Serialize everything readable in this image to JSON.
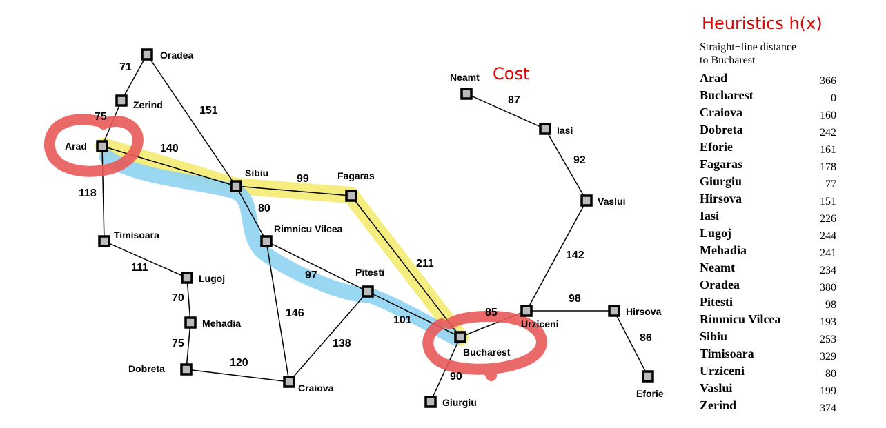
{
  "cost_label": "Cost",
  "heuristics": {
    "title": "Heuristics h(x)",
    "subtitle_line1": "Straight−line distance",
    "subtitle_line2": "to Bucharest",
    "rows": [
      {
        "city": "Arad",
        "value": "366"
      },
      {
        "city": "Bucharest",
        "value": "0"
      },
      {
        "city": "Craiova",
        "value": "160"
      },
      {
        "city": "Dobreta",
        "value": "242"
      },
      {
        "city": "Eforie",
        "value": "161"
      },
      {
        "city": "Fagaras",
        "value": "178"
      },
      {
        "city": "Giurgiu",
        "value": "77"
      },
      {
        "city": "Hirsova",
        "value": "151"
      },
      {
        "city": "Iasi",
        "value": "226"
      },
      {
        "city": "Lugoj",
        "value": "244"
      },
      {
        "city": "Mehadia",
        "value": "241"
      },
      {
        "city": "Neamt",
        "value": "234"
      },
      {
        "city": "Oradea",
        "value": "380"
      },
      {
        "city": "Pitesti",
        "value": "98"
      },
      {
        "city": "Rimnicu Vilcea",
        "value": "193"
      },
      {
        "city": "Sibiu",
        "value": "253"
      },
      {
        "city": "Timisoara",
        "value": "329"
      },
      {
        "city": "Urziceni",
        "value": "80"
      },
      {
        "city": "Vaslui",
        "value": "199"
      },
      {
        "city": "Zerind",
        "value": "374"
      }
    ]
  },
  "cities": {
    "oradea": "Oradea",
    "zerind": "Zerind",
    "arad": "Arad",
    "sibiu": "Sibiu",
    "fagaras": "Fagaras",
    "timisoara": "Timisoara",
    "rimnicu": "Rimnicu Vilcea",
    "lugoj": "Lugoj",
    "pitesti": "Pitesti",
    "mehadia": "Mehadia",
    "bucharest": "Bucharest",
    "dobreta": "Dobreta",
    "craiova": "Craiova",
    "giurgiu": "Giurgiu",
    "neamt": "Neamt",
    "iasi": "Iasi",
    "vaslui": "Vaslui",
    "urziceni": "Urziceni",
    "hirsova": "Hirsova",
    "eforie": "Eforie"
  },
  "edges": {
    "oradea_zerind": "71",
    "oradea_sibiu": "151",
    "zerind_arad": "75",
    "arad_sibiu": "140",
    "arad_timisoara": "118",
    "sibiu_fagaras": "99",
    "sibiu_rimnicu": "80",
    "timisoara_lugoj": "111",
    "lugoj_mehadia": "70",
    "mehadia_dobreta": "75",
    "dobreta_craiova": "120",
    "rimnicu_craiova": "146",
    "rimnicu_pitesti": "97",
    "craiova_pitesti": "138",
    "pitesti_bucharest": "101",
    "fagaras_bucharest": "211",
    "bucharest_giurgiu": "90",
    "bucharest_urziceni": "85",
    "urziceni_hirsova": "98",
    "urziceni_vaslui": "142",
    "hirsova_eforie": "86",
    "vaslui_iasi": "92",
    "iasi_neamt": "87"
  },
  "colors": {
    "highlight_yellow": "#f5ec7a",
    "highlight_blue": "#8fd3f2",
    "circle_red": "#e85a5a",
    "label_red": "#e00000"
  }
}
